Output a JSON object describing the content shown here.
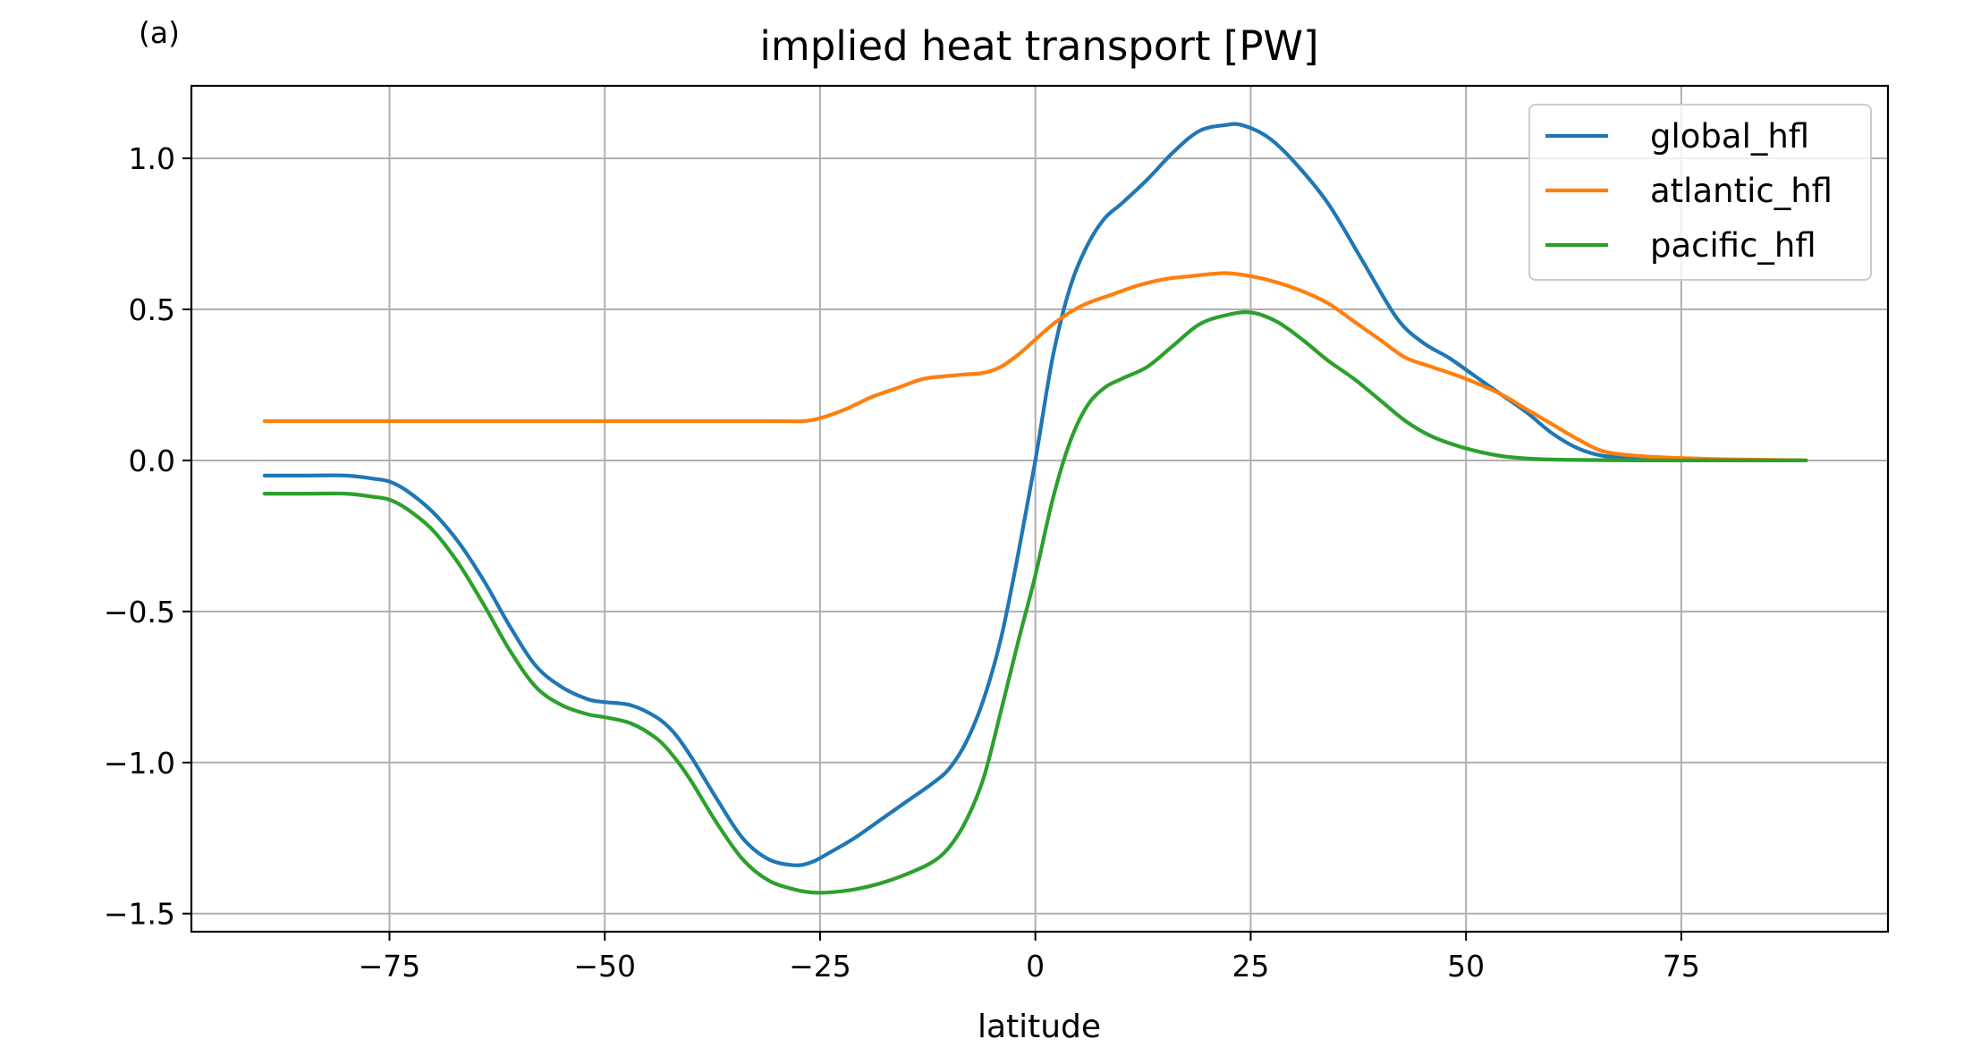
{
  "panel_label": "(a)",
  "chart_data": {
    "type": "line",
    "title": "implied heat transport [PW]",
    "xlabel": "latitude",
    "ylabel": "",
    "xlim": [
      -98,
      99
    ],
    "ylim": [
      -1.56,
      1.24
    ],
    "xticks": [
      -75,
      -50,
      -25,
      0,
      25,
      50,
      75
    ],
    "xtick_labels": [
      "−75",
      "−50",
      "−25",
      "0",
      "25",
      "50",
      "75"
    ],
    "yticks": [
      -1.5,
      -1.0,
      -0.5,
      0.0,
      0.5,
      1.0
    ],
    "ytick_labels": [
      "−1.5",
      "−1.0",
      "−0.5",
      "0.0",
      "0.5",
      "1.0"
    ],
    "grid": true,
    "legend_position": "upper-right",
    "series": [
      {
        "name": "global_hfl",
        "color": "#1f77b4",
        "x": [
          -89.5,
          -85,
          -80,
          -77,
          -75,
          -73,
          -70,
          -67,
          -64,
          -61,
          -58,
          -55,
          -52,
          -50,
          -47,
          -44,
          -42,
          -40,
          -37,
          -34,
          -31,
          -28,
          -26,
          -24,
          -21,
          -18,
          -15,
          -12,
          -10,
          -8,
          -6,
          -4,
          -2,
          0,
          2,
          4,
          6,
          8,
          10,
          13,
          16,
          19,
          22,
          24,
          27,
          30,
          34,
          38,
          42,
          45,
          48,
          51,
          54,
          57,
          60,
          63,
          66,
          70,
          75,
          80,
          85,
          89.5
        ],
        "y": [
          -0.05,
          -0.05,
          -0.05,
          -0.06,
          -0.07,
          -0.1,
          -0.17,
          -0.27,
          -0.4,
          -0.55,
          -0.68,
          -0.75,
          -0.79,
          -0.8,
          -0.81,
          -0.85,
          -0.9,
          -0.98,
          -1.12,
          -1.25,
          -1.32,
          -1.34,
          -1.33,
          -1.3,
          -1.25,
          -1.19,
          -1.13,
          -1.07,
          -1.02,
          -0.93,
          -0.79,
          -0.59,
          -0.31,
          0.0,
          0.34,
          0.57,
          0.71,
          0.8,
          0.85,
          0.93,
          1.02,
          1.09,
          1.11,
          1.11,
          1.07,
          0.99,
          0.85,
          0.66,
          0.47,
          0.39,
          0.34,
          0.28,
          0.22,
          0.16,
          0.09,
          0.04,
          0.015,
          0.008,
          0.004,
          0.002,
          0.001,
          0.0
        ]
      },
      {
        "name": "atlantic_hfl",
        "color": "#ff7f0e",
        "x": [
          -89.5,
          -80,
          -70,
          -60,
          -50,
          -40,
          -30,
          -27,
          -25,
          -22,
          -19,
          -16,
          -13,
          -10,
          -8,
          -6,
          -4,
          -2,
          0,
          2,
          4,
          6,
          9,
          12,
          15,
          18,
          22,
          25,
          28,
          31,
          34,
          37,
          40,
          43,
          46,
          50,
          54,
          57,
          60,
          63,
          66,
          70,
          75,
          80,
          85,
          89.5
        ],
        "y": [
          0.13,
          0.13,
          0.13,
          0.13,
          0.13,
          0.13,
          0.13,
          0.13,
          0.14,
          0.17,
          0.21,
          0.24,
          0.27,
          0.28,
          0.285,
          0.29,
          0.31,
          0.35,
          0.4,
          0.45,
          0.49,
          0.52,
          0.55,
          0.58,
          0.6,
          0.61,
          0.62,
          0.61,
          0.59,
          0.56,
          0.52,
          0.46,
          0.4,
          0.34,
          0.31,
          0.27,
          0.22,
          0.17,
          0.12,
          0.07,
          0.03,
          0.015,
          0.008,
          0.004,
          0.002,
          0.0
        ]
      },
      {
        "name": "pacific_hfl",
        "color": "#2ca02c",
        "x": [
          -89.5,
          -85,
          -80,
          -77,
          -75,
          -73,
          -70,
          -67,
          -64,
          -61,
          -58,
          -55,
          -52,
          -50,
          -47,
          -44,
          -42,
          -40,
          -37,
          -34,
          -31,
          -28,
          -26,
          -24,
          -21,
          -18,
          -15,
          -12,
          -10,
          -8,
          -6,
          -4,
          -2,
          0,
          2,
          4,
          6,
          8,
          10,
          13,
          16,
          19,
          22,
          25,
          28,
          31,
          34,
          37,
          40,
          43,
          46,
          50,
          54,
          58,
          62,
          66,
          70,
          75,
          80,
          85,
          89.5
        ],
        "y": [
          -0.11,
          -0.11,
          -0.11,
          -0.12,
          -0.13,
          -0.16,
          -0.23,
          -0.34,
          -0.48,
          -0.63,
          -0.75,
          -0.81,
          -0.84,
          -0.85,
          -0.87,
          -0.92,
          -0.98,
          -1.06,
          -1.2,
          -1.32,
          -1.39,
          -1.42,
          -1.43,
          -1.43,
          -1.42,
          -1.4,
          -1.37,
          -1.33,
          -1.28,
          -1.19,
          -1.05,
          -0.83,
          -0.6,
          -0.38,
          -0.13,
          0.06,
          0.18,
          0.24,
          0.27,
          0.31,
          0.38,
          0.45,
          0.48,
          0.49,
          0.46,
          0.4,
          0.33,
          0.27,
          0.2,
          0.13,
          0.08,
          0.04,
          0.015,
          0.005,
          0.002,
          0.001,
          0.0,
          0.0,
          0.0,
          0.0,
          0.0
        ]
      }
    ]
  }
}
